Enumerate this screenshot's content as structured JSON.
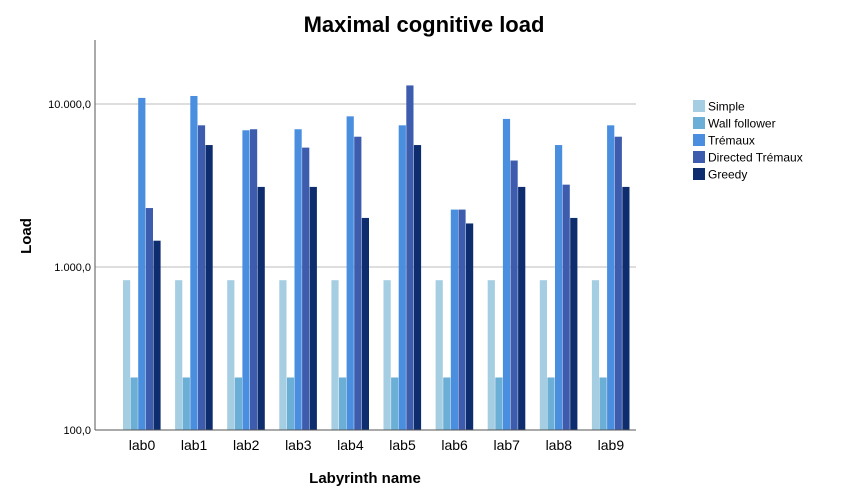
{
  "chart_data": {
    "type": "bar",
    "title": "Maximal cognitive load",
    "xlabel": "Labyrinth name",
    "ylabel": "Load",
    "yscale": "log",
    "ylim": [
      100,
      25000
    ],
    "yticks": [
      100,
      1000,
      10000
    ],
    "ytick_labels": [
      "100,0",
      "1.000,0",
      "10.000,0"
    ],
    "grid": "horizontal major gridlines",
    "legend_position": "right",
    "categories": [
      "lab0",
      "lab1",
      "lab2",
      "lab3",
      "lab4",
      "lab5",
      "lab6",
      "lab7",
      "lab8",
      "lab9"
    ],
    "series": [
      {
        "name": "Simple",
        "color": "#a6cee3",
        "values": [
          830,
          830,
          830,
          830,
          830,
          830,
          830,
          830,
          830,
          830
        ]
      },
      {
        "name": "Wall follower",
        "color": "#6baed6",
        "values": [
          210,
          210,
          210,
          210,
          210,
          210,
          210,
          210,
          210,
          210
        ]
      },
      {
        "name": "Trémaux",
        "color": "#4a8ee0",
        "values": [
          10900,
          11200,
          6900,
          7000,
          8400,
          7400,
          2250,
          8100,
          5600,
          7400
        ]
      },
      {
        "name": "Directed Trémaux",
        "color": "#3d5cad",
        "values": [
          2300,
          7400,
          7000,
          5400,
          6300,
          13000,
          2250,
          4500,
          3200,
          6300
        ]
      },
      {
        "name": "Greedy",
        "color": "#0e2d6e",
        "values": [
          1450,
          5600,
          3100,
          3100,
          2000,
          5600,
          1850,
          3100,
          2000,
          3100
        ]
      }
    ]
  }
}
